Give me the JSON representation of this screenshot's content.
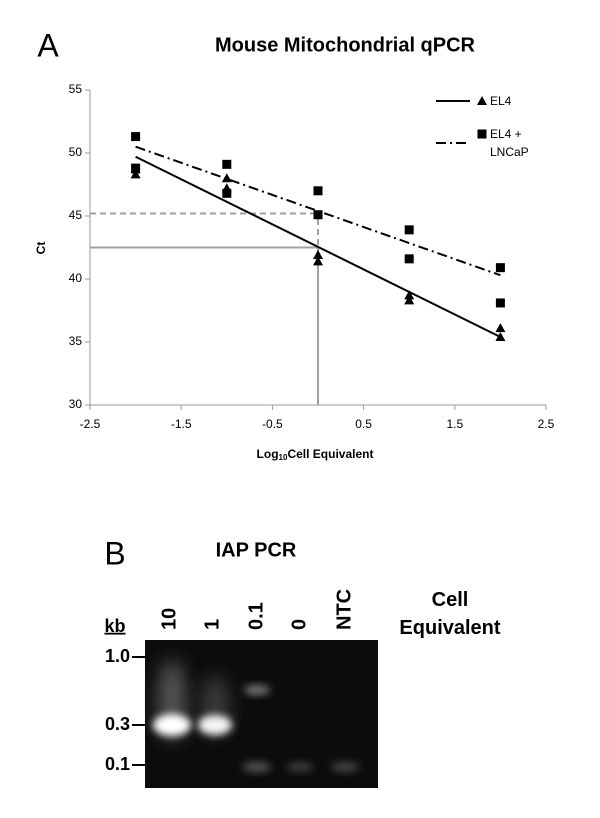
{
  "panels": [
    "A",
    "B"
  ],
  "chart_data": {
    "type": "scatter",
    "title": "Mouse Mitochondrial qPCR",
    "x_label_parts": [
      "Log",
      "10",
      "Cell Equivalent"
    ],
    "y_label": "Ct",
    "xlim": [
      -2.5,
      2.5
    ],
    "xticks": [
      -2.5,
      -1.5,
      -0.5,
      0.5,
      1.5,
      2.5
    ],
    "ylim": [
      30,
      55
    ],
    "yticks": [
      30,
      35,
      40,
      45,
      50,
      55
    ],
    "grid": false,
    "legend": "upper right",
    "series": [
      {
        "name": "EL4",
        "color": "#000000",
        "marker": "triangle",
        "x": [
          -2,
          -2,
          -1,
          -1,
          0,
          0,
          1,
          1,
          2,
          2
        ],
        "values": [
          48.7,
          48.3,
          48.0,
          47.2,
          41.9,
          41.4,
          38.7,
          38.3,
          36.1,
          35.4
        ],
        "trendline": {
          "x": [
            -2,
            2
          ],
          "values": [
            49.7,
            35.4
          ],
          "dash": "solid"
        }
      },
      {
        "name": "EL4 + LNCaP",
        "color": "#000000",
        "marker": "square",
        "x": [
          -2,
          -2,
          -1,
          -1,
          0,
          0,
          1,
          1,
          2,
          2
        ],
        "values": [
          51.3,
          48.8,
          49.1,
          46.8,
          47.0,
          45.1,
          43.9,
          41.6,
          40.9,
          38.1
        ],
        "trendline": {
          "x": [
            -2,
            2
          ],
          "values": [
            50.5,
            40.3
          ],
          "dash": "dashdot"
        }
      }
    ],
    "reference_lines": [
      {
        "x": 0,
        "y": 42.5,
        "color": "#a0a0a0",
        "dash": "solid"
      },
      {
        "x": 0,
        "y": 45.2,
        "color": "#a0a0a0",
        "dash": "dashed"
      }
    ]
  },
  "gel": {
    "title": "IAP PCR",
    "lanes": [
      "10",
      "1",
      "0.1",
      "0",
      "NTC"
    ],
    "lanes_header": "Cell Equivalent",
    "size_unit": "kb",
    "size_markers": [
      "1.0",
      "0.3",
      "0.1"
    ]
  }
}
